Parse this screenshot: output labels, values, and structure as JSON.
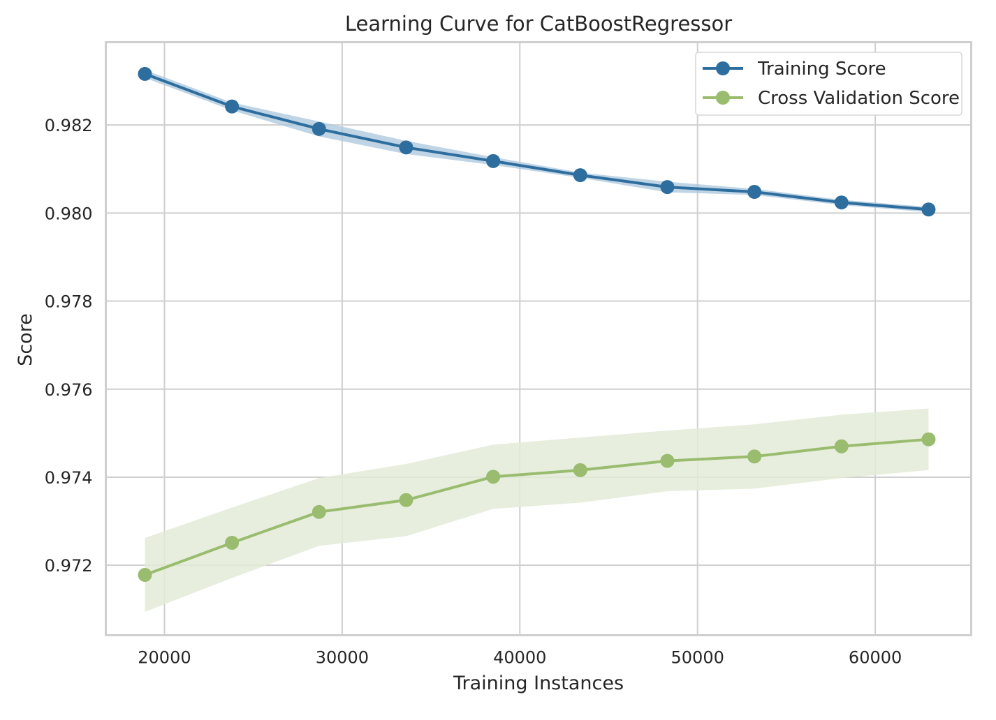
{
  "chart_data": {
    "type": "line",
    "title": "Learning Curve for CatBoostRegressor",
    "xlabel": "Training Instances",
    "ylabel": "Score",
    "xlim": [
      16700,
      65400
    ],
    "ylim": [
      0.97041,
      0.98388
    ],
    "xticks": [
      20000,
      30000,
      40000,
      50000,
      60000
    ],
    "xtick_labels": [
      "20000",
      "30000",
      "40000",
      "50000",
      "60000"
    ],
    "yticks": [
      0.972,
      0.974,
      0.976,
      0.978,
      0.98,
      0.982
    ],
    "ytick_labels": [
      "0.972",
      "0.974",
      "0.976",
      "0.978",
      "0.980",
      "0.982"
    ],
    "grid": true,
    "legend_position": "top-right",
    "x": [
      18900,
      23800,
      28700,
      33600,
      38500,
      43400,
      48300,
      53200,
      58100,
      63000
    ],
    "series": [
      {
        "name": "Training Score",
        "color": "#2d6e9e",
        "band_color": "#aac6dc",
        "values": [
          0.98316,
          0.98242,
          0.98191,
          0.98149,
          0.98118,
          0.98086,
          0.98059,
          0.98048,
          0.98024,
          0.98008
        ],
        "upper": [
          0.98325,
          0.98251,
          0.98208,
          0.98164,
          0.98127,
          0.98092,
          0.98071,
          0.98055,
          0.9803,
          0.98014
        ],
        "lower": [
          0.98307,
          0.98233,
          0.98174,
          0.98134,
          0.98109,
          0.9808,
          0.98047,
          0.98041,
          0.98018,
          0.98002
        ]
      },
      {
        "name": "Cross Validation Score",
        "color": "#99bc6e",
        "band_color": "#e3ebd8",
        "values": [
          0.97178,
          0.97251,
          0.97321,
          0.97348,
          0.97401,
          0.97416,
          0.97437,
          0.97447,
          0.9747,
          0.97486
        ],
        "upper": [
          0.97262,
          0.97331,
          0.97398,
          0.9743,
          0.97474,
          0.9749,
          0.97506,
          0.9752,
          0.97542,
          0.97556
        ],
        "lower": [
          0.97094,
          0.97171,
          0.97244,
          0.97266,
          0.97328,
          0.97342,
          0.97368,
          0.97374,
          0.97398,
          0.97416
        ]
      }
    ]
  }
}
